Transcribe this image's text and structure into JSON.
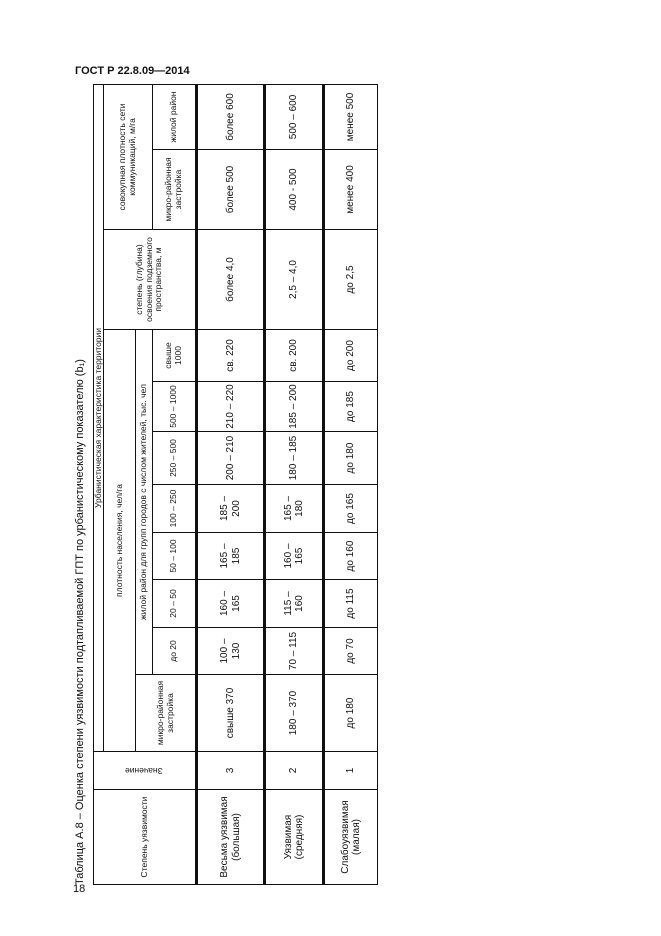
{
  "header": {
    "doc_code": "ГОСТ Р 22.8.09—2014",
    "page_number": "18"
  },
  "caption": "Таблица А.8 – Оценка степени уязвимости подтапливаемой ГПТ по урбанистическому показателю (b₁)",
  "table": {
    "col_degree": "Степень уязвимости",
    "col_value": "Значение",
    "group_urban": "Урбанистическая характеристика территории",
    "group_density": "плотность населения, чел/га",
    "col_micro": "микро-районная застройка",
    "group_residential": "жилой район для групп городов с числом жителей, тыс. чел",
    "city_groups": [
      "до 20",
      "20 – 50",
      "50 – 100",
      "100 – 250",
      "250 – 500",
      "500 – 1000",
      "свыше 1000"
    ],
    "col_underground": "степень (глубина) освоения подземного пространства, м",
    "group_network": "совокупная плотность сети коммуникаций, м/га",
    "col_net_micro": "микро-районная застройка",
    "col_net_residential": "жилой район",
    "rows": [
      [
        "Весьма уязвимая (большая)",
        "3",
        "свыше 370",
        "100 – 130",
        "160 – 165",
        "165 – 185",
        "185 – 200",
        "200 – 210",
        "210 – 220",
        "св. 220",
        "более 4,0",
        "более 500",
        "более 600"
      ],
      [
        "Уязвимая (средняя)",
        "2",
        "180 – 370",
        "70 – 115",
        "115 – 160",
        "160 – 165",
        "165 – 180",
        "180 – 185",
        "185 – 200",
        "св. 200",
        "2,5 – 4,0",
        "400 - 500",
        "500 – 600"
      ],
      [
        "Слабоуязвимая (малая)",
        "1",
        "до 180",
        "до 70",
        "до 115",
        "до 160",
        "до 165",
        "до 180",
        "до 185",
        "до 200",
        "до 2,5",
        "менее 400",
        "менее 500"
      ]
    ]
  }
}
